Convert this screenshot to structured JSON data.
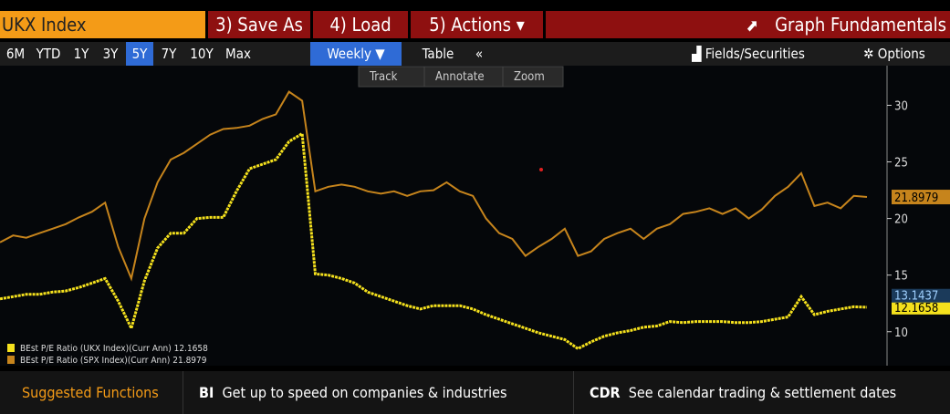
{
  "header": {
    "security": "UKX Index",
    "buttons": [
      "3) Save As",
      "4) Load",
      "5) Actions ▾"
    ],
    "right": "Graph Fundamentals"
  },
  "toolbar": {
    "periods": [
      "6M",
      "YTD",
      "1Y",
      "3Y",
      "5Y",
      "7Y",
      "10Y",
      "Max"
    ],
    "active_period": 4,
    "frequency": "Weekly ▼",
    "table": "Table",
    "collapse": "«",
    "fields": "Fields/Securities",
    "options": "Options"
  },
  "chart_tools": [
    "Track",
    "Annotate",
    "Zoom"
  ],
  "chart_data": {
    "type": "line",
    "series": [
      {
        "name": "BEst P/E Ratio (UKX Index)(Curr Ann)",
        "color": "#f5e11d",
        "values": [
          12.9,
          13.1,
          13.3,
          13.3,
          13.5,
          13.6,
          13.9,
          14.3,
          14.7,
          12.7,
          10.3,
          14.5,
          17.4,
          18.7,
          18.7,
          20.0,
          20.1,
          20.1,
          22.4,
          24.4,
          24.8,
          25.2,
          26.8,
          27.5,
          15.1,
          15.0,
          14.7,
          14.3,
          13.5,
          13.1,
          12.7,
          12.3,
          12.0,
          12.3,
          12.3,
          12.3,
          12.0,
          11.5,
          11.1,
          10.7,
          10.3,
          9.9,
          9.6,
          9.3,
          8.5,
          9.1,
          9.6,
          9.9,
          10.1,
          10.4,
          10.5,
          10.9,
          10.8,
          10.9,
          10.9,
          10.9,
          10.8,
          10.8,
          10.9,
          11.1,
          11.3,
          13.1,
          11.5,
          11.8,
          12.0,
          12.2,
          12.1658
        ]
      },
      {
        "name": "BEst P/E Ratio (SPX Index)(Curr Ann)",
        "color": "#c6841c",
        "values": [
          17.9,
          18.5,
          18.3,
          18.7,
          19.1,
          19.5,
          20.1,
          20.6,
          21.4,
          17.5,
          14.7,
          20.0,
          23.2,
          25.2,
          25.8,
          26.6,
          27.4,
          27.9,
          28.0,
          28.2,
          28.8,
          29.2,
          31.2,
          30.4,
          22.4,
          22.8,
          23.0,
          22.8,
          22.4,
          22.2,
          22.4,
          22.0,
          22.4,
          22.5,
          23.2,
          22.4,
          22.0,
          20.0,
          18.7,
          18.2,
          16.7,
          17.5,
          18.2,
          19.1,
          16.7,
          17.1,
          18.2,
          18.7,
          19.1,
          18.2,
          19.1,
          19.5,
          20.4,
          20.6,
          20.9,
          20.4,
          20.9,
          20.0,
          20.8,
          22.0,
          22.8,
          24.0,
          21.1,
          21.4,
          20.9,
          22.0,
          21.8979
        ]
      }
    ],
    "marker_value": 13.1437,
    "ylim": [
      7,
      33.5
    ],
    "yticks": [
      10,
      15,
      20,
      25,
      30
    ]
  },
  "footer": {
    "label": "Suggested Functions",
    "items": [
      {
        "code": "BI",
        "text": "Get up to speed on companies & industries"
      },
      {
        "code": "CDR",
        "text": "See calendar trading & settlement dates"
      }
    ]
  }
}
